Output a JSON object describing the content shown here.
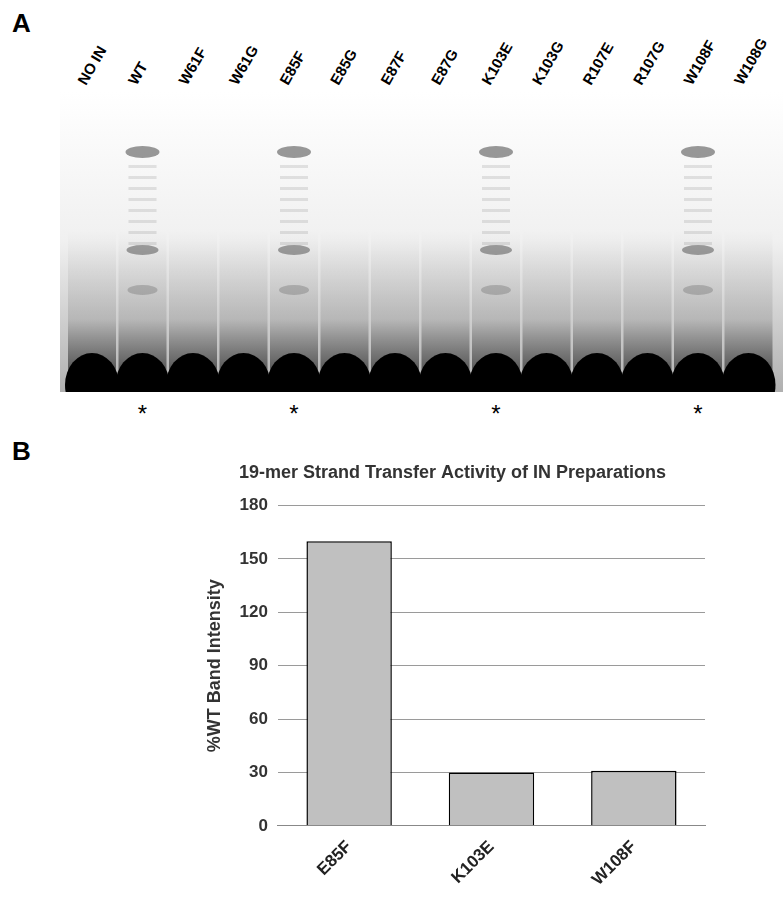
{
  "panel_a": {
    "label": "A",
    "lanes": [
      "NO IN",
      "WT",
      "W61F",
      "W61G",
      "E85F",
      "E85G",
      "E87F",
      "E87G",
      "K103E",
      "K103G",
      "R107E",
      "R107G",
      "W108F",
      "W108G"
    ],
    "marks": [
      null,
      "*",
      null,
      null,
      "*",
      null,
      null,
      null,
      "*",
      null,
      null,
      null,
      "*",
      null
    ]
  },
  "panel_b": {
    "label": "B"
  },
  "chart_data": {
    "type": "bar",
    "title": "19-mer Strand Transfer Activity of IN Preparations",
    "y_label": "%WT Band Intensity",
    "categories": [
      "E85F",
      "K103E",
      "W108F"
    ],
    "values": [
      160,
      30,
      31
    ],
    "color": "#c0c0c0",
    "ylim": [
      0,
      180
    ],
    "yticks": [
      0,
      30,
      60,
      90,
      120,
      150,
      180
    ],
    "grid": true
  }
}
